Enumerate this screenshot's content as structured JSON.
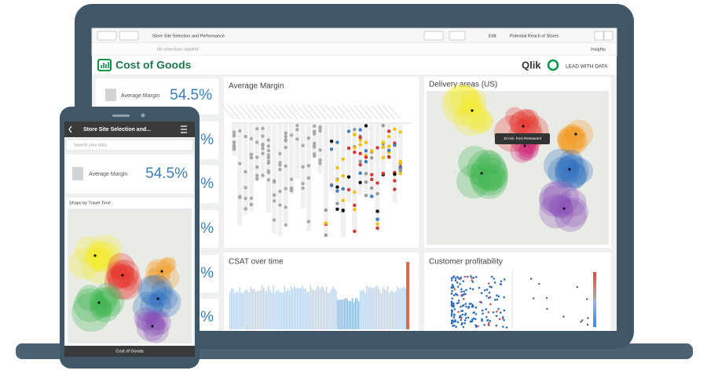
{
  "toolbar": {
    "app_title": "Store Site Selection and Performance",
    "edit": "Edit",
    "sheet": "Potential Reach of Stores",
    "insights": "Insights",
    "selections": "No selections applied"
  },
  "header": {
    "title": "Cost of Goods",
    "brand": "Qlik",
    "tagline": "LEAD WITH DATA"
  },
  "kpi": {
    "label": "Average Margin",
    "value": "54.5%"
  },
  "kpi_fragments": [
    "%",
    "%",
    "%",
    "%",
    "%"
  ],
  "panels": {
    "average_margin": "Average Margin",
    "delivery": "Delivery areas (US)",
    "map_tooltip": "15 min. from Restaurant",
    "csat": "CSAT over time",
    "profitability": "Customer profitability"
  },
  "phone": {
    "title": "Store Site Selection and...",
    "search": "Search your data",
    "kpi_label": "Average Margin",
    "kpi_value": "54.5%",
    "section": "Shops by Travel Time",
    "footer": "Cost of Goods"
  }
}
